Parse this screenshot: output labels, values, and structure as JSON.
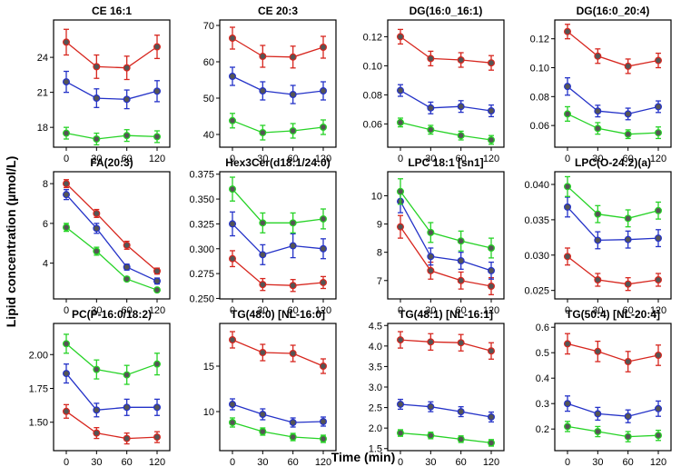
{
  "figure": {
    "xlabel": "Time (min)",
    "ylabel": "Lipid concentration (µmol/L)"
  },
  "series_colors": {
    "red": "#d7261e",
    "blue": "#2432c8",
    "green": "#26d326"
  },
  "chart_data": [
    {
      "type": "line",
      "title": "CE 16:1",
      "x": [
        0,
        30,
        60,
        120
      ],
      "xticks": [
        "0",
        "30",
        "60",
        "120"
      ],
      "ylim": [
        16.3,
        27.2
      ],
      "yticks": [
        18,
        21,
        24
      ],
      "ytick_labels": [
        "18",
        "21",
        "24"
      ],
      "series": [
        {
          "name": "red",
          "values": [
            25.3,
            23.2,
            23.1,
            24.9
          ],
          "err": [
            1.1,
            1.0,
            1.0,
            1.0
          ]
        },
        {
          "name": "blue",
          "values": [
            21.9,
            20.5,
            20.4,
            21.1
          ],
          "err": [
            0.9,
            0.8,
            0.8,
            0.9
          ]
        },
        {
          "name": "green",
          "values": [
            17.5,
            17.0,
            17.3,
            17.2
          ],
          "err": [
            0.5,
            0.5,
            0.5,
            0.5
          ]
        }
      ]
    },
    {
      "type": "line",
      "title": "CE 20:3",
      "x": [
        0,
        30,
        60,
        120
      ],
      "xticks": [
        "0",
        "30",
        "60",
        "120"
      ],
      "ylim": [
        36.5,
        71.5
      ],
      "yticks": [
        40,
        50,
        60,
        70
      ],
      "ytick_labels": [
        "40",
        "50",
        "60",
        "70"
      ],
      "series": [
        {
          "name": "red",
          "values": [
            66.5,
            61.5,
            61.3,
            64.0
          ],
          "err": [
            3.0,
            3.0,
            3.0,
            3.0
          ]
        },
        {
          "name": "blue",
          "values": [
            56.0,
            52.0,
            51.0,
            52.0
          ],
          "err": [
            2.5,
            2.5,
            2.5,
            2.5
          ]
        },
        {
          "name": "green",
          "values": [
            43.8,
            40.5,
            41.0,
            42.0
          ],
          "err": [
            2.0,
            2.0,
            2.0,
            2.0
          ]
        }
      ]
    },
    {
      "type": "line",
      "title": "DG(16:0_16:1)",
      "x": [
        0,
        30,
        60,
        120
      ],
      "xticks": [
        "0",
        "30",
        "60",
        "120"
      ],
      "ylim": [
        0.044,
        0.1315
      ],
      "yticks": [
        0.06,
        0.08,
        0.1,
        0.12
      ],
      "ytick_labels": [
        "0.06",
        "0.08",
        "0.10",
        "0.12"
      ],
      "series": [
        {
          "name": "red",
          "values": [
            0.12,
            0.105,
            0.104,
            0.102
          ],
          "err": [
            0.005,
            0.005,
            0.005,
            0.005
          ]
        },
        {
          "name": "blue",
          "values": [
            0.083,
            0.071,
            0.072,
            0.069
          ],
          "err": [
            0.004,
            0.004,
            0.004,
            0.004
          ]
        },
        {
          "name": "green",
          "values": [
            0.061,
            0.056,
            0.052,
            0.049
          ],
          "err": [
            0.003,
            0.003,
            0.003,
            0.003
          ]
        }
      ]
    },
    {
      "type": "line",
      "title": "DG(16:0_20:4)",
      "x": [
        0,
        30,
        60,
        120
      ],
      "xticks": [
        "0",
        "30",
        "60",
        "120"
      ],
      "ylim": [
        0.045,
        0.133
      ],
      "yticks": [
        0.06,
        0.08,
        0.1,
        0.12
      ],
      "ytick_labels": [
        "0.06",
        "0.08",
        "0.10",
        "0.12"
      ],
      "series": [
        {
          "name": "red",
          "values": [
            0.125,
            0.108,
            0.101,
            0.105
          ],
          "err": [
            0.005,
            0.005,
            0.005,
            0.005
          ]
        },
        {
          "name": "blue",
          "values": [
            0.087,
            0.07,
            0.068,
            0.073
          ],
          "err": [
            0.006,
            0.004,
            0.004,
            0.004
          ]
        },
        {
          "name": "green",
          "values": [
            0.068,
            0.058,
            0.054,
            0.055
          ],
          "err": [
            0.005,
            0.004,
            0.003,
            0.004
          ]
        }
      ]
    },
    {
      "type": "line",
      "title": "FA(20:3)",
      "x": [
        0,
        30,
        60,
        120
      ],
      "xticks": [
        "0",
        "30",
        "60",
        "120"
      ],
      "ylim": [
        2.2,
        8.6
      ],
      "yticks": [
        4,
        6,
        8
      ],
      "ytick_labels": [
        "4",
        "6",
        "8"
      ],
      "series": [
        {
          "name": "red",
          "values": [
            8.0,
            6.5,
            4.9,
            3.6
          ],
          "err": [
            0.2,
            0.2,
            0.2,
            0.15
          ]
        },
        {
          "name": "blue",
          "values": [
            7.45,
            5.75,
            3.8,
            3.1
          ],
          "err": [
            0.25,
            0.25,
            0.15,
            0.15
          ]
        },
        {
          "name": "green",
          "values": [
            5.8,
            4.6,
            3.2,
            2.65
          ],
          "err": [
            0.2,
            0.2,
            0.1,
            0.1
          ]
        }
      ]
    },
    {
      "type": "line",
      "title": "Hex3Cer(d18:1/24:0)",
      "x": [
        0,
        30,
        60,
        120
      ],
      "xticks": [
        "0",
        "30",
        "60",
        "120"
      ],
      "ylim": [
        0.2495,
        0.3775
      ],
      "yticks": [
        0.25,
        0.275,
        0.3,
        0.325,
        0.35,
        0.375
      ],
      "ytick_labels": [
        "0.250",
        "0.275",
        "0.300",
        "0.325",
        "0.350",
        "0.375"
      ],
      "series": [
        {
          "name": "red",
          "values": [
            0.29,
            0.264,
            0.263,
            0.266
          ],
          "err": [
            0.008,
            0.006,
            0.006,
            0.006
          ]
        },
        {
          "name": "blue",
          "values": [
            0.325,
            0.294,
            0.303,
            0.3
          ],
          "err": [
            0.012,
            0.01,
            0.012,
            0.01
          ]
        },
        {
          "name": "green",
          "values": [
            0.36,
            0.326,
            0.326,
            0.33
          ],
          "err": [
            0.012,
            0.01,
            0.01,
            0.01
          ]
        }
      ]
    },
    {
      "type": "line",
      "title": "LPC 18:1 [sn1]",
      "x": [
        0,
        30,
        60,
        120
      ],
      "xticks": [
        "0",
        "30",
        "60",
        "120"
      ],
      "ylim": [
        6.35,
        10.85
      ],
      "yticks": [
        7,
        8,
        9,
        10
      ],
      "ytick_labels": [
        "7",
        "8",
        "9",
        "10"
      ],
      "series": [
        {
          "name": "red",
          "values": [
            8.9,
            7.35,
            7.0,
            6.8
          ],
          "err": [
            0.4,
            0.3,
            0.3,
            0.3
          ]
        },
        {
          "name": "blue",
          "values": [
            9.8,
            7.85,
            7.7,
            7.35
          ],
          "err": [
            0.4,
            0.3,
            0.3,
            0.3
          ]
        },
        {
          "name": "green",
          "values": [
            10.15,
            8.7,
            8.4,
            8.15
          ],
          "err": [
            0.45,
            0.35,
            0.35,
            0.35
          ]
        }
      ]
    },
    {
      "type": "line",
      "title": "LPC(O-24:2)(a)",
      "x": [
        0,
        30,
        60,
        120
      ],
      "xticks": [
        "0",
        "30",
        "60",
        "120"
      ],
      "ylim": [
        0.0238,
        0.0418
      ],
      "yticks": [
        0.025,
        0.03,
        0.035,
        0.04
      ],
      "ytick_labels": [
        "0.025",
        "0.030",
        "0.035",
        "0.040"
      ],
      "series": [
        {
          "name": "red",
          "values": [
            0.0298,
            0.0265,
            0.0259,
            0.0265
          ],
          "err": [
            0.0012,
            0.0009,
            0.0009,
            0.0009
          ]
        },
        {
          "name": "blue",
          "values": [
            0.0368,
            0.0321,
            0.0322,
            0.0324
          ],
          "err": [
            0.0014,
            0.0012,
            0.0012,
            0.0012
          ]
        },
        {
          "name": "green",
          "values": [
            0.0397,
            0.0358,
            0.0352,
            0.0363
          ],
          "err": [
            0.0014,
            0.0012,
            0.0012,
            0.0012
          ]
        }
      ]
    },
    {
      "type": "line",
      "title": "PC(P-16:0/18:2)",
      "x": [
        0,
        30,
        60,
        120
      ],
      "xticks": [
        "0",
        "30",
        "60",
        "120"
      ],
      "ylim": [
        1.29,
        2.23
      ],
      "yticks": [
        1.5,
        1.75,
        2.0
      ],
      "ytick_labels": [
        "1.50",
        "1.75",
        "2.00"
      ],
      "series": [
        {
          "name": "red",
          "values": [
            1.58,
            1.42,
            1.38,
            1.39
          ],
          "err": [
            0.05,
            0.04,
            0.04,
            0.04
          ]
        },
        {
          "name": "blue",
          "values": [
            1.86,
            1.59,
            1.61,
            1.61
          ],
          "err": [
            0.07,
            0.05,
            0.06,
            0.06
          ]
        },
        {
          "name": "green",
          "values": [
            2.08,
            1.89,
            1.85,
            1.93
          ],
          "err": [
            0.07,
            0.07,
            0.07,
            0.08
          ]
        }
      ]
    },
    {
      "type": "line",
      "title": "TG(48:0) [NL-16:0]",
      "x": [
        0,
        30,
        60,
        120
      ],
      "xticks": [
        "0",
        "30",
        "60",
        "120"
      ],
      "ylim": [
        5.7,
        19.7
      ],
      "yticks": [
        10,
        15
      ],
      "ytick_labels": [
        "10",
        "15"
      ],
      "series": [
        {
          "name": "red",
          "values": [
            17.9,
            16.5,
            16.4,
            15.0
          ],
          "err": [
            0.9,
            0.9,
            0.9,
            0.8
          ]
        },
        {
          "name": "blue",
          "values": [
            10.8,
            9.7,
            8.8,
            8.9
          ],
          "err": [
            0.6,
            0.6,
            0.5,
            0.5
          ]
        },
        {
          "name": "green",
          "values": [
            8.8,
            7.8,
            7.2,
            7.0
          ],
          "err": [
            0.5,
            0.4,
            0.4,
            0.4
          ]
        }
      ]
    },
    {
      "type": "line",
      "title": "TG(48:1) [NL-16:1]",
      "x": [
        0,
        30,
        60,
        120
      ],
      "xticks": [
        "0",
        "30",
        "60",
        "120"
      ],
      "ylim": [
        1.45,
        4.55
      ],
      "yticks": [
        1.5,
        2.0,
        2.5,
        3.0,
        3.5,
        4.0,
        4.5
      ],
      "ytick_labels": [
        "1.5",
        "2.0",
        "2.5",
        "3.0",
        "3.5",
        "4.0",
        "4.5"
      ],
      "series": [
        {
          "name": "red",
          "values": [
            4.15,
            4.1,
            4.08,
            3.88
          ],
          "err": [
            0.2,
            0.2,
            0.2,
            0.2
          ]
        },
        {
          "name": "blue",
          "values": [
            2.58,
            2.52,
            2.4,
            2.27
          ],
          "err": [
            0.12,
            0.12,
            0.12,
            0.12
          ]
        },
        {
          "name": "green",
          "values": [
            1.88,
            1.82,
            1.73,
            1.64
          ],
          "err": [
            0.08,
            0.08,
            0.08,
            0.08
          ]
        }
      ]
    },
    {
      "type": "line",
      "title": "TG(50:4) [NL-20:4]",
      "x": [
        0,
        30,
        60,
        120
      ],
      "xticks": [
        "0",
        "30",
        "60",
        "120"
      ],
      "ylim": [
        0.115,
        0.615
      ],
      "yticks": [
        0.2,
        0.3,
        0.4,
        0.5,
        0.6
      ],
      "ytick_labels": [
        "0.2",
        "0.3",
        "0.4",
        "0.5",
        "0.6"
      ],
      "series": [
        {
          "name": "red",
          "values": [
            0.535,
            0.505,
            0.465,
            0.49
          ],
          "err": [
            0.04,
            0.04,
            0.04,
            0.04
          ]
        },
        {
          "name": "blue",
          "values": [
            0.3,
            0.26,
            0.25,
            0.28
          ],
          "err": [
            0.03,
            0.025,
            0.025,
            0.03
          ]
        },
        {
          "name": "green",
          "values": [
            0.21,
            0.19,
            0.17,
            0.175
          ],
          "err": [
            0.02,
            0.02,
            0.02,
            0.02
          ]
        }
      ]
    }
  ]
}
